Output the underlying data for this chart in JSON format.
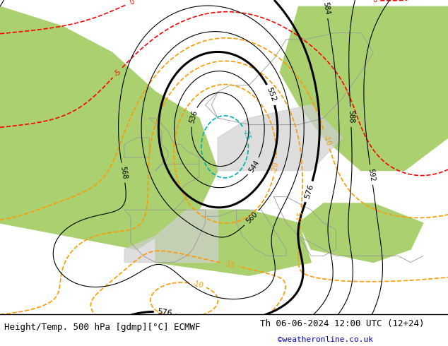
{
  "title_left": "Height/Temp. 500 hPa [gdmp][°C] ECMWF",
  "title_right": "Th 06-06-2024 12:00 UTC (12+24)",
  "watermark": "©weatheronline.co.uk",
  "background_grey": "#d0d0d0",
  "background_green": "#aad070",
  "background_sea": "#e0e0e0",
  "z500_color": "#000000",
  "temp_orange_color": "#ff9900",
  "temp_cyan_color": "#00b0b0",
  "temp_red_color": "#ff0000",
  "temp_green_color": "#66bb00",
  "coast_color": "#999999",
  "title_fontsize": 9,
  "label_fontsize": 7
}
